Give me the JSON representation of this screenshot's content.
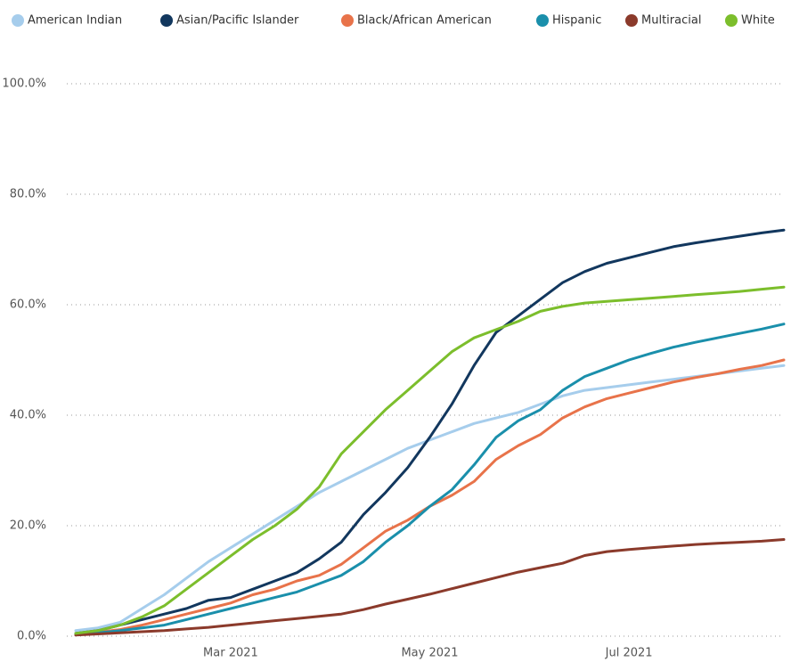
{
  "chart_data": {
    "type": "line",
    "categories": [
      null,
      null,
      null,
      null,
      null,
      null,
      null,
      "Mar 2021",
      null,
      null,
      null,
      null,
      null,
      null,
      null,
      null,
      "May 2021",
      null,
      null,
      null,
      null,
      null,
      null,
      null,
      null,
      "Jul 2021",
      null,
      null,
      null,
      null,
      null,
      null,
      null
    ],
    "series": [
      {
        "name": "American Indian",
        "color": "#a6cdec",
        "values": [
          1,
          1.5,
          2.5,
          5,
          7.5,
          10.5,
          13.5,
          16,
          18.5,
          21,
          23.5,
          26,
          28,
          30,
          32,
          34,
          35.5,
          37,
          38.5,
          39.5,
          40.5,
          42,
          43.5,
          44.5,
          45,
          45.5,
          46,
          46.5,
          47,
          47.5,
          48,
          48.5,
          49
        ]
      },
      {
        "name": "Asian/Pacific Islander",
        "color": "#12375e",
        "values": [
          0.5,
          1,
          2,
          3,
          4,
          5,
          6.5,
          7,
          8.5,
          10,
          11.5,
          14,
          17,
          22,
          26,
          30.5,
          36,
          42,
          49,
          55,
          58,
          61,
          64,
          66,
          67.5,
          68.5,
          69.5,
          70.5,
          71.2,
          71.8,
          72.4,
          73,
          73.5
        ]
      },
      {
        "name": "Black/African American",
        "color": "#e8734a",
        "values": [
          0.3,
          0.7,
          1.2,
          2,
          3,
          4,
          5,
          6,
          7.5,
          8.5,
          10,
          11,
          13,
          16,
          19,
          21,
          23.5,
          25.5,
          28,
          32,
          34.5,
          36.5,
          39.5,
          41.5,
          43,
          44,
          45,
          46,
          46.8,
          47.5,
          48.3,
          49,
          50
        ]
      },
      {
        "name": "Hispanic",
        "color": "#1a8fab",
        "values": [
          0.3,
          0.6,
          1,
          1.5,
          2,
          3,
          4,
          5,
          6,
          7,
          8,
          9.5,
          11,
          13.5,
          17,
          20,
          23.5,
          26.5,
          31,
          36,
          39,
          41,
          44.5,
          47,
          48.5,
          50,
          51.2,
          52.3,
          53.2,
          54,
          54.8,
          55.6,
          56.5
        ]
      },
      {
        "name": "Multiracial",
        "color": "#8b3a2b",
        "values": [
          0.2,
          0.4,
          0.6,
          0.8,
          1,
          1.3,
          1.6,
          2,
          2.4,
          2.8,
          3.2,
          3.6,
          4,
          4.8,
          5.8,
          6.7,
          7.6,
          8.6,
          9.6,
          10.6,
          11.6,
          12.4,
          13.2,
          14.6,
          15.3,
          15.7,
          16,
          16.3,
          16.6,
          16.8,
          17,
          17.2,
          17.5
        ]
      },
      {
        "name": "White",
        "color": "#7cbe2c",
        "values": [
          0.5,
          1,
          2,
          3.5,
          5.5,
          8.5,
          11.5,
          14.5,
          17.5,
          20,
          23,
          27,
          33,
          37,
          41,
          44.5,
          48,
          51.5,
          54,
          55.5,
          57,
          58.8,
          59.7,
          60.3,
          60.6,
          60.9,
          61.2,
          61.5,
          61.8,
          62.1,
          62.4,
          62.8,
          63.2
        ]
      }
    ],
    "ylim": [
      0,
      100
    ],
    "yticks": [
      {
        "value": 0,
        "label": "0.0%"
      },
      {
        "value": 20,
        "label": "20.0%"
      },
      {
        "value": 40,
        "label": "40.0%"
      },
      {
        "value": 60,
        "label": "60.0%"
      },
      {
        "value": 80,
        "label": "80.0%"
      },
      {
        "value": 100,
        "label": "100.0%"
      }
    ],
    "grid": true
  }
}
